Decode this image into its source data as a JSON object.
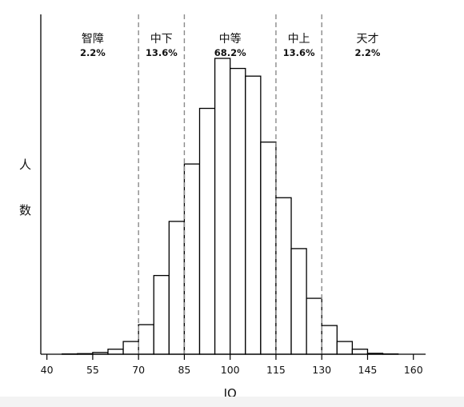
{
  "chart_data": {
    "type": "bar",
    "title": "",
    "xlabel": "IQ",
    "ylabel_chars": [
      "人",
      "数"
    ],
    "xlim": [
      38,
      164
    ],
    "x_ticks": [
      40,
      55,
      70,
      85,
      100,
      115,
      130,
      145,
      160
    ],
    "bin_width": 5,
    "bins": [
      {
        "x0": 45,
        "x1": 50,
        "value": 0.1
      },
      {
        "x0": 50,
        "x1": 55,
        "value": 0.2
      },
      {
        "x0": 55,
        "x1": 60,
        "value": 0.6
      },
      {
        "x0": 60,
        "x1": 65,
        "value": 1.7
      },
      {
        "x0": 65,
        "x1": 70,
        "value": 4.3
      },
      {
        "x0": 70,
        "x1": 75,
        "value": 10
      },
      {
        "x0": 75,
        "x1": 80,
        "value": 26.6
      },
      {
        "x0": 80,
        "x1": 85,
        "value": 44.9
      },
      {
        "x0": 85,
        "x1": 90,
        "value": 64.3
      },
      {
        "x0": 90,
        "x1": 95,
        "value": 83.1
      },
      {
        "x0": 95,
        "x1": 100,
        "value": 100
      },
      {
        "x0": 100,
        "x1": 105,
        "value": 96.6
      },
      {
        "x0": 105,
        "x1": 110,
        "value": 94
      },
      {
        "x0": 110,
        "x1": 115,
        "value": 71.7
      },
      {
        "x0": 115,
        "x1": 120,
        "value": 52.9
      },
      {
        "x0": 120,
        "x1": 125,
        "value": 35.7
      },
      {
        "x0": 125,
        "x1": 130,
        "value": 18.9
      },
      {
        "x0": 130,
        "x1": 135,
        "value": 9.7
      },
      {
        "x0": 135,
        "x1": 140,
        "value": 4.3
      },
      {
        "x0": 140,
        "x1": 145,
        "value": 1.7
      },
      {
        "x0": 145,
        "x1": 150,
        "value": 0.3
      },
      {
        "x0": 150,
        "x1": 155,
        "value": 0.1
      }
    ],
    "y_max": 100,
    "dividers": [
      70,
      85,
      115,
      130
    ],
    "regions": [
      {
        "name": "智障",
        "pct": "2.2%",
        "x_center": 55
      },
      {
        "name": "中下",
        "pct": "13.6%",
        "x_center": 77.5
      },
      {
        "name": "中等",
        "pct": "68.2%",
        "x_center": 100
      },
      {
        "name": "中上",
        "pct": "13.6%",
        "x_center": 122.5
      },
      {
        "name": "天才",
        "pct": "2.2%",
        "x_center": 145
      }
    ],
    "grid": false,
    "legend": "none",
    "colors": {
      "bar_fill": "#ffffff",
      "bar_stroke": "#000000",
      "divider": "#8a8a8a",
      "axis": "#000000"
    }
  }
}
